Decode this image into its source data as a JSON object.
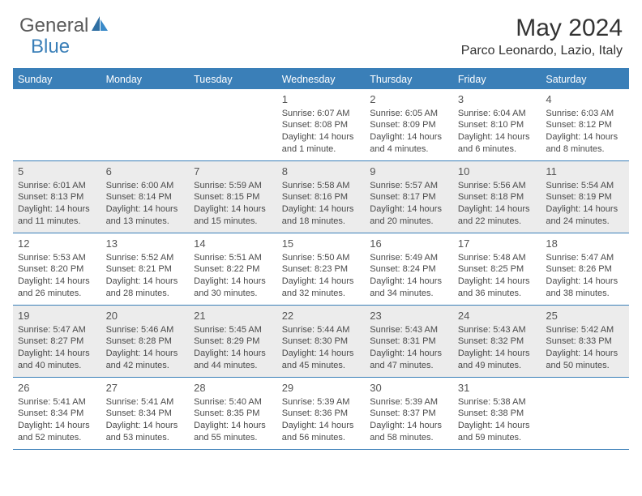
{
  "brand": {
    "part1": "General",
    "part2": "Blue"
  },
  "title": "May 2024",
  "location": "Parco Leonardo, Lazio, Italy",
  "colors": {
    "accent": "#3a7fb8",
    "shade": "#ececec",
    "text": "#4a4a4a"
  },
  "weekdays": [
    "Sunday",
    "Monday",
    "Tuesday",
    "Wednesday",
    "Thursday",
    "Friday",
    "Saturday"
  ],
  "weeks": [
    {
      "shaded": false,
      "days": [
        {
          "n": "",
          "sr": "",
          "ss": "",
          "dl": ""
        },
        {
          "n": "",
          "sr": "",
          "ss": "",
          "dl": ""
        },
        {
          "n": "",
          "sr": "",
          "ss": "",
          "dl": ""
        },
        {
          "n": "1",
          "sr": "Sunrise: 6:07 AM",
          "ss": "Sunset: 8:08 PM",
          "dl": "Daylight: 14 hours and 1 minute."
        },
        {
          "n": "2",
          "sr": "Sunrise: 6:05 AM",
          "ss": "Sunset: 8:09 PM",
          "dl": "Daylight: 14 hours and 4 minutes."
        },
        {
          "n": "3",
          "sr": "Sunrise: 6:04 AM",
          "ss": "Sunset: 8:10 PM",
          "dl": "Daylight: 14 hours and 6 minutes."
        },
        {
          "n": "4",
          "sr": "Sunrise: 6:03 AM",
          "ss": "Sunset: 8:12 PM",
          "dl": "Daylight: 14 hours and 8 minutes."
        }
      ]
    },
    {
      "shaded": true,
      "days": [
        {
          "n": "5",
          "sr": "Sunrise: 6:01 AM",
          "ss": "Sunset: 8:13 PM",
          "dl": "Daylight: 14 hours and 11 minutes."
        },
        {
          "n": "6",
          "sr": "Sunrise: 6:00 AM",
          "ss": "Sunset: 8:14 PM",
          "dl": "Daylight: 14 hours and 13 minutes."
        },
        {
          "n": "7",
          "sr": "Sunrise: 5:59 AM",
          "ss": "Sunset: 8:15 PM",
          "dl": "Daylight: 14 hours and 15 minutes."
        },
        {
          "n": "8",
          "sr": "Sunrise: 5:58 AM",
          "ss": "Sunset: 8:16 PM",
          "dl": "Daylight: 14 hours and 18 minutes."
        },
        {
          "n": "9",
          "sr": "Sunrise: 5:57 AM",
          "ss": "Sunset: 8:17 PM",
          "dl": "Daylight: 14 hours and 20 minutes."
        },
        {
          "n": "10",
          "sr": "Sunrise: 5:56 AM",
          "ss": "Sunset: 8:18 PM",
          "dl": "Daylight: 14 hours and 22 minutes."
        },
        {
          "n": "11",
          "sr": "Sunrise: 5:54 AM",
          "ss": "Sunset: 8:19 PM",
          "dl": "Daylight: 14 hours and 24 minutes."
        }
      ]
    },
    {
      "shaded": false,
      "days": [
        {
          "n": "12",
          "sr": "Sunrise: 5:53 AM",
          "ss": "Sunset: 8:20 PM",
          "dl": "Daylight: 14 hours and 26 minutes."
        },
        {
          "n": "13",
          "sr": "Sunrise: 5:52 AM",
          "ss": "Sunset: 8:21 PM",
          "dl": "Daylight: 14 hours and 28 minutes."
        },
        {
          "n": "14",
          "sr": "Sunrise: 5:51 AM",
          "ss": "Sunset: 8:22 PM",
          "dl": "Daylight: 14 hours and 30 minutes."
        },
        {
          "n": "15",
          "sr": "Sunrise: 5:50 AM",
          "ss": "Sunset: 8:23 PM",
          "dl": "Daylight: 14 hours and 32 minutes."
        },
        {
          "n": "16",
          "sr": "Sunrise: 5:49 AM",
          "ss": "Sunset: 8:24 PM",
          "dl": "Daylight: 14 hours and 34 minutes."
        },
        {
          "n": "17",
          "sr": "Sunrise: 5:48 AM",
          "ss": "Sunset: 8:25 PM",
          "dl": "Daylight: 14 hours and 36 minutes."
        },
        {
          "n": "18",
          "sr": "Sunrise: 5:47 AM",
          "ss": "Sunset: 8:26 PM",
          "dl": "Daylight: 14 hours and 38 minutes."
        }
      ]
    },
    {
      "shaded": true,
      "days": [
        {
          "n": "19",
          "sr": "Sunrise: 5:47 AM",
          "ss": "Sunset: 8:27 PM",
          "dl": "Daylight: 14 hours and 40 minutes."
        },
        {
          "n": "20",
          "sr": "Sunrise: 5:46 AM",
          "ss": "Sunset: 8:28 PM",
          "dl": "Daylight: 14 hours and 42 minutes."
        },
        {
          "n": "21",
          "sr": "Sunrise: 5:45 AM",
          "ss": "Sunset: 8:29 PM",
          "dl": "Daylight: 14 hours and 44 minutes."
        },
        {
          "n": "22",
          "sr": "Sunrise: 5:44 AM",
          "ss": "Sunset: 8:30 PM",
          "dl": "Daylight: 14 hours and 45 minutes."
        },
        {
          "n": "23",
          "sr": "Sunrise: 5:43 AM",
          "ss": "Sunset: 8:31 PM",
          "dl": "Daylight: 14 hours and 47 minutes."
        },
        {
          "n": "24",
          "sr": "Sunrise: 5:43 AM",
          "ss": "Sunset: 8:32 PM",
          "dl": "Daylight: 14 hours and 49 minutes."
        },
        {
          "n": "25",
          "sr": "Sunrise: 5:42 AM",
          "ss": "Sunset: 8:33 PM",
          "dl": "Daylight: 14 hours and 50 minutes."
        }
      ]
    },
    {
      "shaded": false,
      "days": [
        {
          "n": "26",
          "sr": "Sunrise: 5:41 AM",
          "ss": "Sunset: 8:34 PM",
          "dl": "Daylight: 14 hours and 52 minutes."
        },
        {
          "n": "27",
          "sr": "Sunrise: 5:41 AM",
          "ss": "Sunset: 8:34 PM",
          "dl": "Daylight: 14 hours and 53 minutes."
        },
        {
          "n": "28",
          "sr": "Sunrise: 5:40 AM",
          "ss": "Sunset: 8:35 PM",
          "dl": "Daylight: 14 hours and 55 minutes."
        },
        {
          "n": "29",
          "sr": "Sunrise: 5:39 AM",
          "ss": "Sunset: 8:36 PM",
          "dl": "Daylight: 14 hours and 56 minutes."
        },
        {
          "n": "30",
          "sr": "Sunrise: 5:39 AM",
          "ss": "Sunset: 8:37 PM",
          "dl": "Daylight: 14 hours and 58 minutes."
        },
        {
          "n": "31",
          "sr": "Sunrise: 5:38 AM",
          "ss": "Sunset: 8:38 PM",
          "dl": "Daylight: 14 hours and 59 minutes."
        },
        {
          "n": "",
          "sr": "",
          "ss": "",
          "dl": ""
        }
      ]
    }
  ]
}
